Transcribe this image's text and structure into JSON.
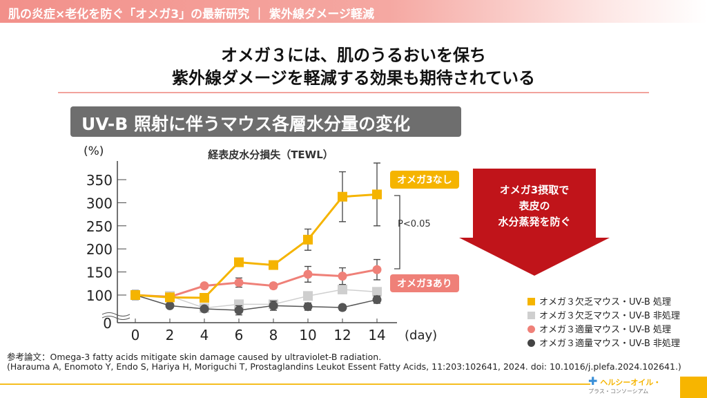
{
  "header": {
    "title": "肌の炎症×老化を防ぐ「オメガ3」の最新研究 ｜ 紫外線ダメージ軽減"
  },
  "headline": {
    "line1": "オメガ３には、肌のうるおいを保ち",
    "line2": "紫外線ダメージを軽減する効果も期待されている"
  },
  "section_badge": "UV-B 照射に伴うマウス各層水分量の変化",
  "callout": {
    "line1": "オメガ3摂取で",
    "line2": "表皮の",
    "line3": "水分蒸発を防ぐ"
  },
  "colors": {
    "yellow": "#f5b400",
    "light_gray": "#cfcfcf",
    "pink": "#ef8078",
    "dark_gray": "#555555",
    "arrow": "#c0141a"
  },
  "chart_data": {
    "type": "line",
    "title": "経表皮水分損失（TEWL）",
    "ylabel": "(%)",
    "xlabel": "(day)",
    "x": [
      0,
      2,
      4,
      6,
      8,
      10,
      12,
      14
    ],
    "yticks": [
      0,
      100,
      150,
      200,
      250,
      300,
      350
    ],
    "ylim": [
      0,
      380
    ],
    "y_axis_break": true,
    "series": [
      {
        "name": "オメガ３欠乏マウス・UV-B 処理",
        "marker": "square",
        "color": "#f5b400",
        "values": [
          100,
          95,
          94,
          171,
          165,
          220,
          313,
          318
        ],
        "error": [
          10,
          4,
          4,
          8,
          8,
          23,
          54,
          68
        ]
      },
      {
        "name": "オメガ３欠乏マウス・UV-B 非処理",
        "marker": "square",
        "color": "#cfcfcf",
        "values": [
          100,
          98,
          72,
          80,
          80,
          98,
          112,
          107
        ],
        "error": [
          0,
          0,
          0,
          0,
          0,
          0,
          0,
          0
        ]
      },
      {
        "name": "オメガ３適量マウス・UV-B 処理",
        "marker": "circle",
        "color": "#ef8078",
        "values": [
          100,
          96,
          120,
          127,
          120,
          145,
          141,
          155
        ],
        "error": [
          0,
          0,
          0,
          10,
          6,
          17,
          18,
          22
        ]
      },
      {
        "name": "オメガ３適量マウス・UV-B 非処理",
        "marker": "circle",
        "color": "#555555",
        "values": [
          100,
          77,
          70,
          67,
          77,
          75,
          73,
          90
        ],
        "error": [
          0,
          0,
          0,
          10,
          10,
          8,
          6,
          8
        ]
      }
    ],
    "annotations": {
      "no_omega": "オメガ3なし",
      "with_omega": "オメガ3あり",
      "significance": "P<0.05"
    }
  },
  "reference": {
    "line1": "参考論文：Omega-3 fatty acids mitigate skin damage caused by ultraviolet-B radiation.",
    "line2": "(Harauma A, Enomoto Y, Endo S, Hariya H, Moriguchi T, Prostaglandins Leukot Essent Fatty Acids, 11:203:102641, 2024. doi: 10.1016/j.plefa.2024.102641.)"
  },
  "logo": {
    "line1": "ヘルシーオイル・",
    "line2": "プラス・コンソーシアム"
  }
}
